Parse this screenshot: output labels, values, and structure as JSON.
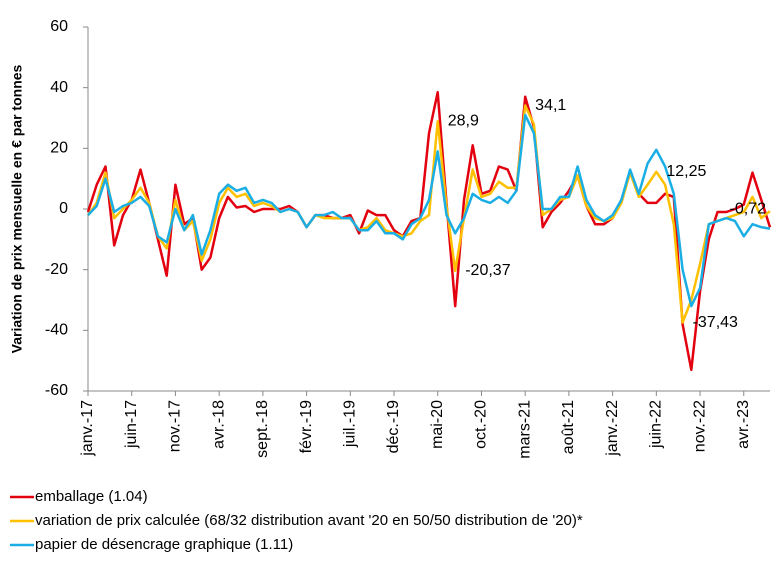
{
  "chart_data": {
    "type": "line",
    "y_label": "Variation de prix mensuelle en € par tonnes",
    "categories": [
      "janv.-17",
      null,
      null,
      null,
      null,
      "juin-17",
      null,
      null,
      null,
      null,
      "nov.-17",
      null,
      null,
      null,
      null,
      "avr.-18",
      null,
      null,
      null,
      null,
      "sept.-18",
      null,
      null,
      null,
      null,
      "févr.-19",
      null,
      null,
      null,
      null,
      "juil.-19",
      null,
      null,
      null,
      null,
      "déc.-19",
      null,
      null,
      null,
      null,
      "mai-20",
      null,
      null,
      null,
      null,
      "oct.-20",
      null,
      null,
      null,
      null,
      "mars-21",
      null,
      null,
      null,
      null,
      "août-21",
      null,
      null,
      null,
      null,
      "janv.-22",
      null,
      null,
      null,
      null,
      "juin-22",
      null,
      null,
      null,
      null,
      "nov.-22",
      null,
      null,
      null,
      null,
      "avr.-23",
      null,
      null,
      null
    ],
    "series": [
      {
        "name": "emballage (1.04)",
        "color": "#e3000f",
        "values": [
          -1,
          8,
          14,
          -12,
          -2,
          3,
          13,
          2,
          -10,
          -22,
          8,
          -5,
          -3,
          -20,
          -16,
          -3,
          4,
          0.5,
          1,
          -1,
          0,
          0,
          0,
          1,
          -1,
          -6,
          -2,
          -2,
          -3,
          -3,
          -2,
          -8,
          -0.5,
          -2,
          -2,
          -7,
          -9,
          -4,
          -3,
          25,
          38.5,
          2,
          -32,
          3,
          21,
          5,
          6,
          14,
          13,
          6,
          37,
          27,
          -6,
          -1,
          2,
          6,
          11,
          1,
          -5,
          -5,
          -3,
          3,
          12,
          5,
          2,
          2,
          5,
          4,
          -38,
          -53,
          -27,
          -10,
          -1,
          -1,
          0,
          1.5,
          12,
          3,
          -6
        ]
      },
      {
        "name": "variation de prix calculée (68/32 distribution avant '20 en 50/50 distribution de '20)*",
        "color": "#ffc000",
        "values": [
          -2,
          2,
          12,
          -3,
          0,
          3,
          7,
          2,
          -9,
          -13,
          3,
          -7,
          -4,
          -17,
          -10,
          2,
          7,
          4,
          5,
          1,
          2,
          1,
          -1,
          0,
          -1,
          -6,
          -2,
          -3,
          -3,
          -3,
          -3,
          -7,
          -6,
          -3,
          -7,
          -8,
          -9,
          -8,
          -4,
          -2,
          28.9,
          1,
          -20.37,
          -3,
          13,
          4,
          5,
          9,
          7,
          7,
          34.1,
          28,
          -2,
          0,
          3,
          4,
          11,
          1,
          -3,
          -4,
          -3,
          2,
          12,
          4,
          8,
          12.25,
          8,
          -5,
          -37.43,
          -30,
          -18,
          -5,
          -4,
          -3,
          -2,
          -1,
          4,
          -3,
          -0.72
        ],
        "value_labels": [
          null,
          null,
          null,
          null,
          null,
          null,
          null,
          null,
          null,
          null,
          null,
          null,
          null,
          null,
          null,
          null,
          null,
          null,
          null,
          null,
          null,
          null,
          null,
          null,
          null,
          null,
          null,
          null,
          null,
          null,
          null,
          null,
          null,
          null,
          null,
          null,
          null,
          null,
          null,
          null,
          "28,9",
          null,
          "-20,37",
          null,
          null,
          null,
          null,
          null,
          null,
          null,
          "34,1",
          null,
          null,
          null,
          null,
          null,
          null,
          null,
          null,
          null,
          null,
          null,
          null,
          null,
          null,
          "12,25",
          null,
          null,
          "-37,43",
          null,
          null,
          null,
          null,
          null,
          null,
          null,
          null,
          null,
          "-0,72"
        ]
      },
      {
        "name": "papier de désencrage graphique (1.11)",
        "color": "#1aaee5",
        "values": [
          -2,
          1,
          10,
          -1,
          1,
          2,
          4,
          1,
          -9,
          -11,
          0,
          -7,
          -2,
          -15,
          -7,
          5,
          8,
          6,
          7,
          2,
          3,
          2,
          -1,
          0,
          -1,
          -6,
          -2,
          -2,
          -1,
          -3,
          -3,
          -7,
          -7,
          -4,
          -8,
          -8,
          -10,
          -5,
          -3,
          3,
          19,
          -2,
          -8,
          -3,
          5,
          3,
          2,
          4,
          2,
          6,
          31,
          25,
          0,
          0,
          4,
          4,
          14,
          3,
          -2,
          -4,
          -2,
          3,
          13,
          5,
          15,
          19.5,
          14,
          5,
          -20,
          -32,
          -26,
          -5,
          -4,
          -3,
          -4,
          -9,
          -5,
          -6,
          -6.5
        ]
      }
    ],
    "ylim": [
      -60,
      60
    ],
    "yticks": [
      -60,
      -40,
      -20,
      0,
      20,
      40,
      60
    ]
  }
}
